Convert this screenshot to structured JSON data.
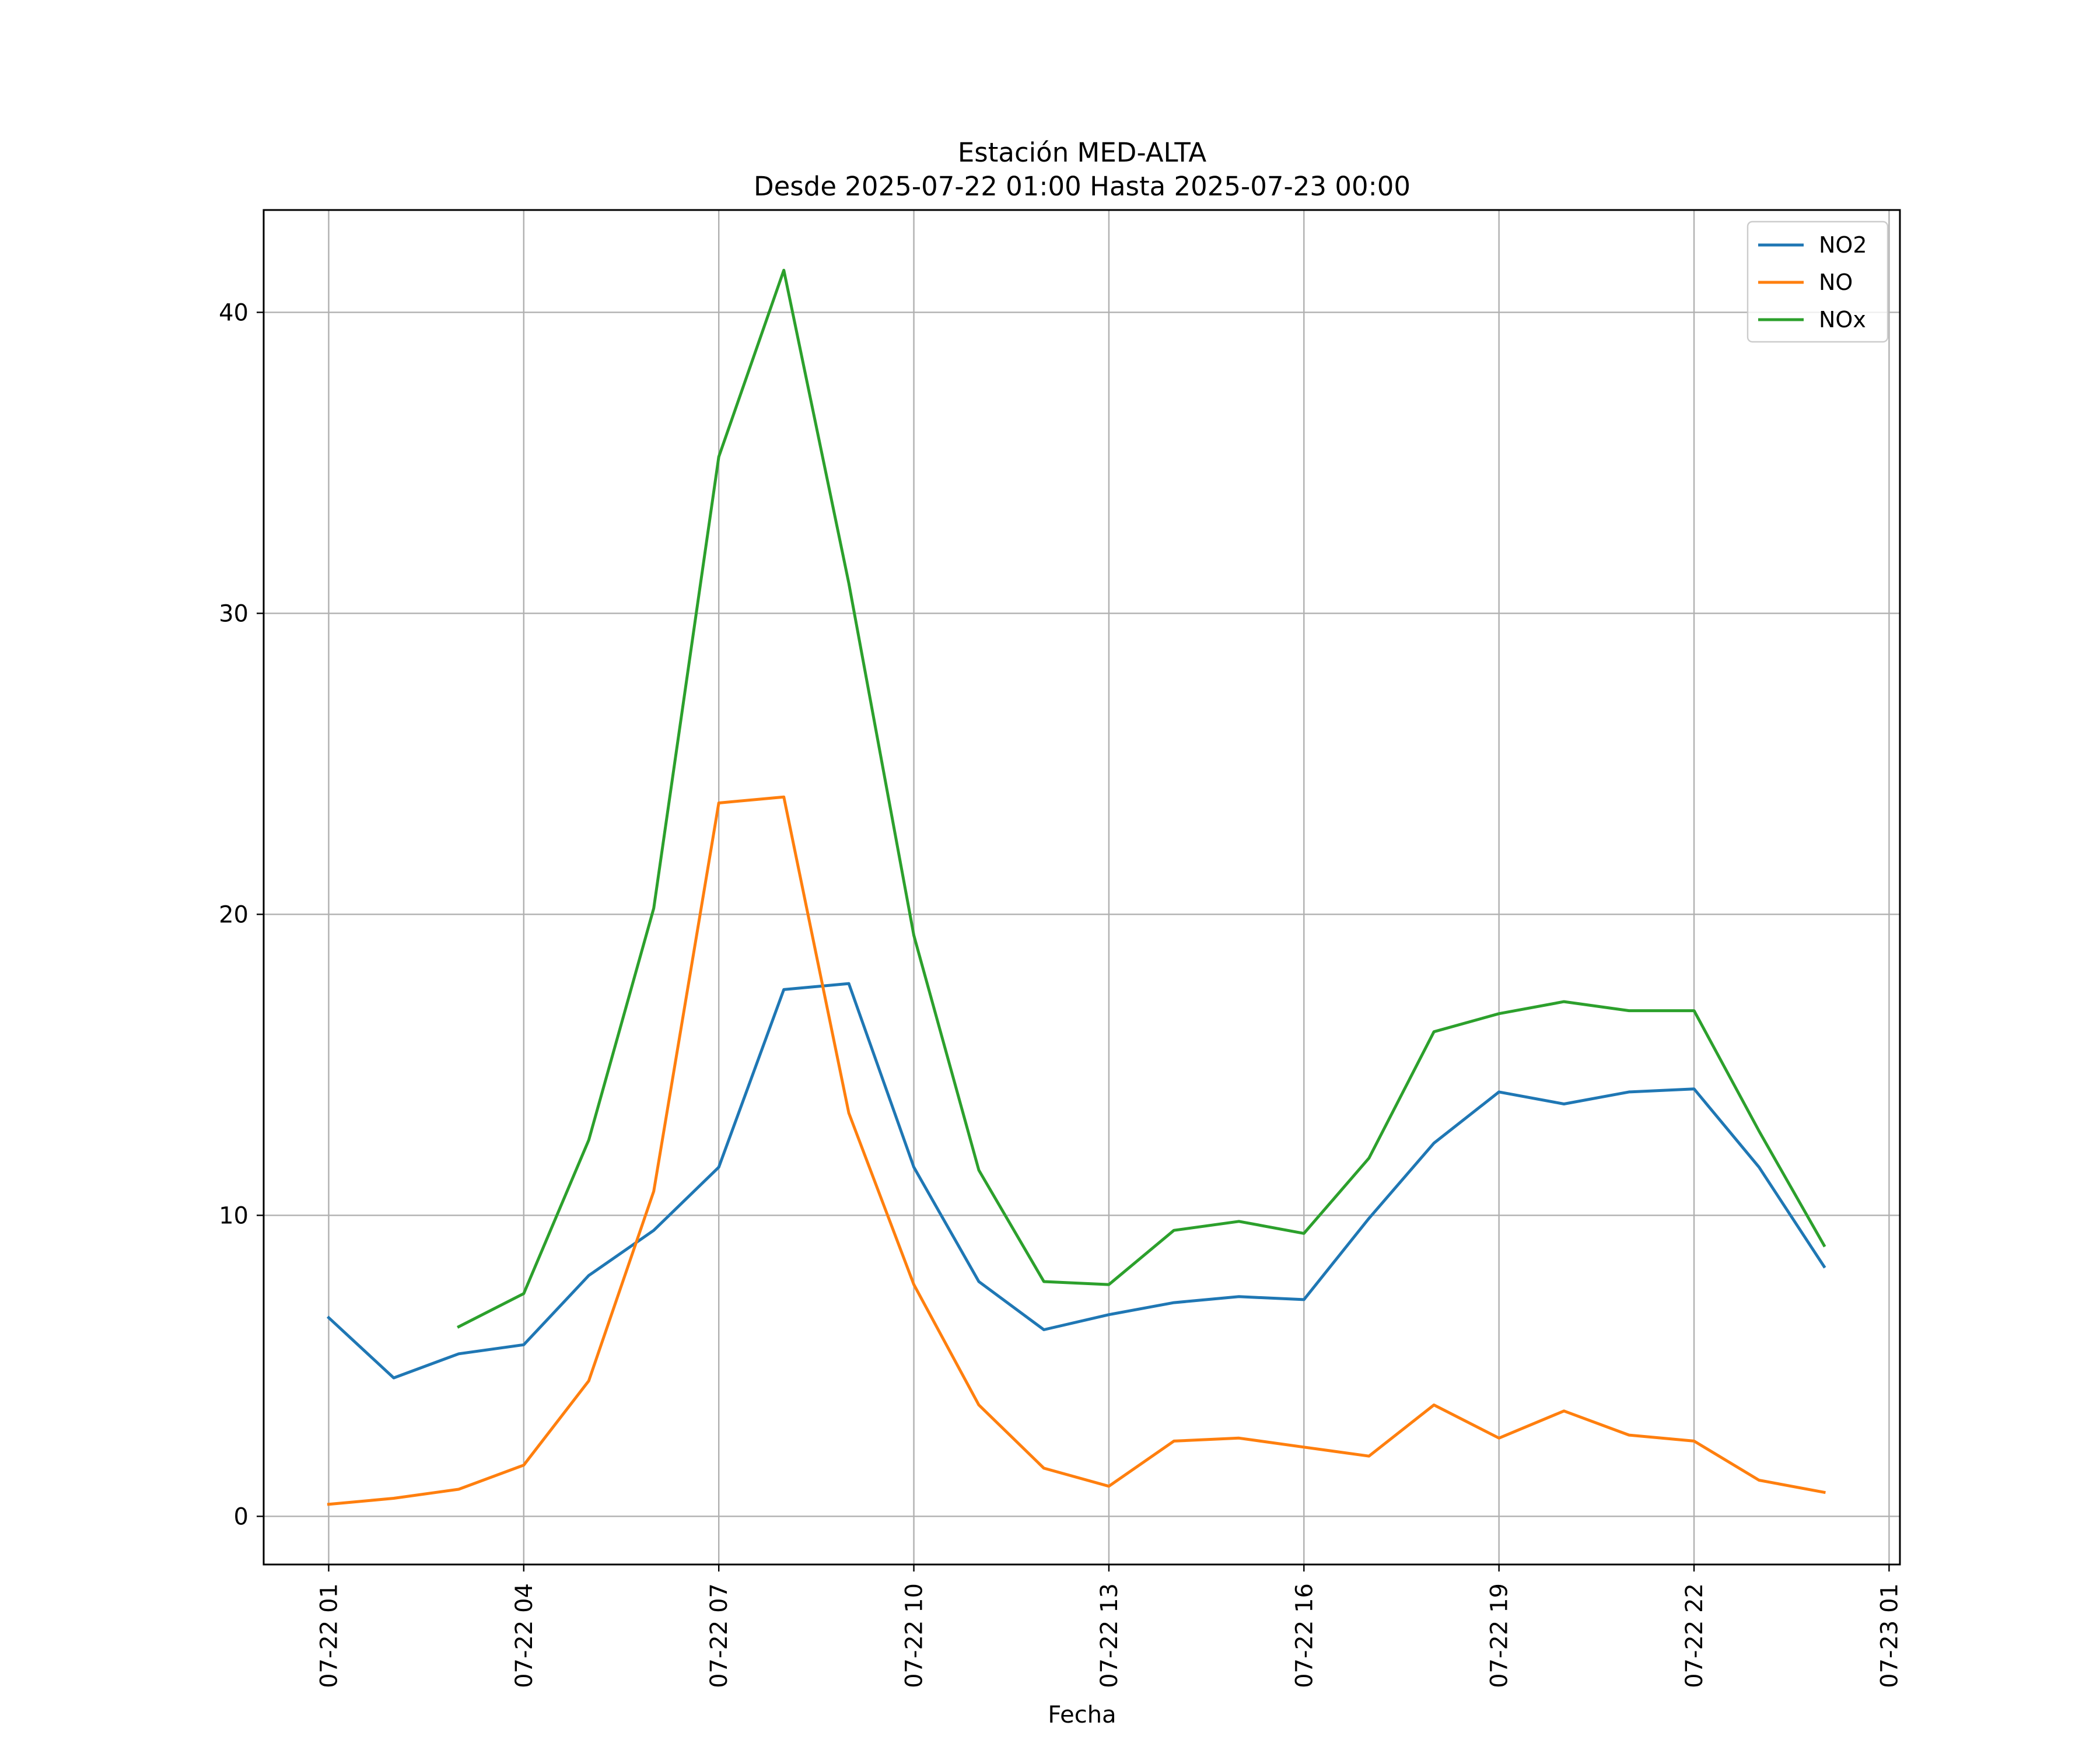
{
  "chart_data": {
    "type": "line",
    "title": "Estación MED-ALTA",
    "subtitle": "Desde 2025-07-22 01:00 Hasta 2025-07-23 00:00",
    "xlabel": "Fecha",
    "ylabel": "",
    "ylim": [
      -1.6,
      43.4
    ],
    "xlim": [
      "2025-07-22 00:00",
      "2025-07-23 01:10"
    ],
    "grid": true,
    "legend_position": "top-right",
    "x": [
      "2025-07-22 01:00",
      "2025-07-22 02:00",
      "2025-07-22 03:00",
      "2025-07-22 04:00",
      "2025-07-22 05:00",
      "2025-07-22 06:00",
      "2025-07-22 07:00",
      "2025-07-22 08:00",
      "2025-07-22 09:00",
      "2025-07-22 10:00",
      "2025-07-22 11:00",
      "2025-07-22 12:00",
      "2025-07-22 13:00",
      "2025-07-22 14:00",
      "2025-07-22 15:00",
      "2025-07-22 16:00",
      "2025-07-22 17:00",
      "2025-07-22 18:00",
      "2025-07-22 19:00",
      "2025-07-22 20:00",
      "2025-07-22 21:00",
      "2025-07-22 22:00",
      "2025-07-22 23:00",
      "2025-07-23 00:00"
    ],
    "x_ticks": [
      {
        "date": "2025-07-22 01:00",
        "label": "07-22 01"
      },
      {
        "date": "2025-07-22 04:00",
        "label": "07-22 04"
      },
      {
        "date": "2025-07-22 07:00",
        "label": "07-22 07"
      },
      {
        "date": "2025-07-22 10:00",
        "label": "07-22 10"
      },
      {
        "date": "2025-07-22 13:00",
        "label": "07-22 13"
      },
      {
        "date": "2025-07-22 16:00",
        "label": "07-22 16"
      },
      {
        "date": "2025-07-22 19:00",
        "label": "07-22 19"
      },
      {
        "date": "2025-07-22 22:00",
        "label": "07-22 22"
      },
      {
        "date": "2025-07-23 01:00",
        "label": "07-23 01"
      }
    ],
    "y_ticks": [
      0,
      10,
      20,
      30,
      40
    ],
    "series": [
      {
        "name": "NO2",
        "color": "#1f77b4",
        "values": [
          6.6,
          4.6,
          5.4,
          5.7,
          8.0,
          9.5,
          11.6,
          17.5,
          17.7,
          11.6,
          7.8,
          6.2,
          6.7,
          7.1,
          7.3,
          7.2,
          9.9,
          12.4,
          14.1,
          13.7,
          14.1,
          14.2,
          11.6,
          8.3
        ]
      },
      {
        "name": "NO",
        "color": "#ff7f0e",
        "values": [
          0.4,
          0.6,
          0.9,
          1.7,
          4.5,
          10.8,
          23.7,
          23.9,
          13.4,
          7.7,
          3.7,
          1.6,
          1.0,
          2.5,
          2.6,
          2.3,
          2.0,
          3.7,
          2.6,
          3.5,
          2.7,
          2.5,
          1.2,
          0.8
        ]
      },
      {
        "name": "NOx",
        "color": "#2ca02c",
        "values": [
          null,
          null,
          6.3,
          7.4,
          12.5,
          20.2,
          35.2,
          41.4,
          31.0,
          19.3,
          11.5,
          7.8,
          7.7,
          9.5,
          9.8,
          9.4,
          11.9,
          16.1,
          16.7,
          17.1,
          16.8,
          16.8,
          12.8,
          9.0
        ]
      }
    ]
  }
}
